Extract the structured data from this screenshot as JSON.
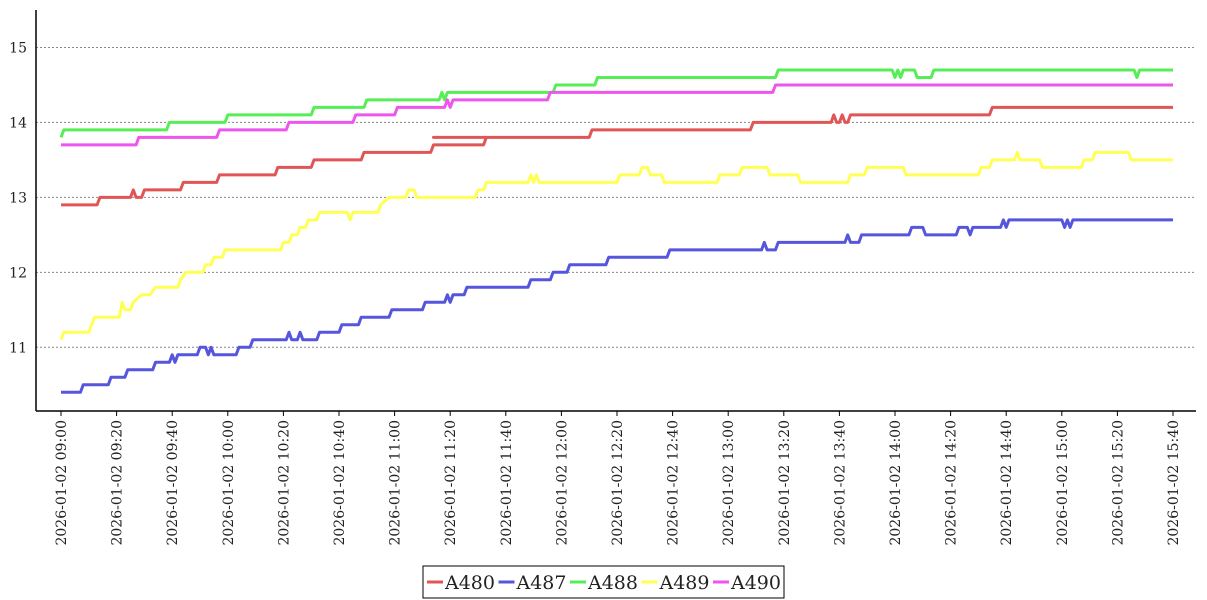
{
  "chart_data": {
    "type": "line",
    "title": "",
    "xlabel": "",
    "ylabel": "",
    "ylim": [
      10.15,
      15.5
    ],
    "yticks": [
      11,
      12,
      13,
      14,
      15
    ],
    "grid": "horizontal-dotted",
    "legend_placement": "bottom-center",
    "x_start": "2026-01-02 09:00",
    "x_end": "2026-01-02 15:40",
    "x_ticks": [
      "2026-01-02 09:00",
      "2026-01-02 09:20",
      "2026-01-02 09:40",
      "2026-01-02 10:00",
      "2026-01-02 10:20",
      "2026-01-02 10:40",
      "2026-01-02 11:00",
      "2026-01-02 11:20",
      "2026-01-02 11:40",
      "2026-01-02 12:00",
      "2026-01-02 12:20",
      "2026-01-02 12:40",
      "2026-01-02 13:00",
      "2026-01-02 13:20",
      "2026-01-02 13:40",
      "2026-01-02 14:00",
      "2026-01-02 14:20",
      "2026-01-02 14:40",
      "2026-01-02 15:00",
      "2026-01-02 15:20",
      "2026-01-02 15:40"
    ],
    "series": [
      {
        "name": "A480",
        "color": "#e05555",
        "points": [
          [
            "09:00",
            12.9
          ],
          [
            "09:13",
            12.9
          ],
          [
            "09:14",
            13.0
          ],
          [
            "09:25",
            13.0
          ],
          [
            "09:26",
            13.1
          ],
          [
            "09:27",
            13.0
          ],
          [
            "09:29",
            13.0
          ],
          [
            "09:30",
            13.1
          ],
          [
            "09:43",
            13.1
          ],
          [
            "09:44",
            13.2
          ],
          [
            "09:56",
            13.2
          ],
          [
            "09:57",
            13.3
          ],
          [
            "10:17",
            13.3
          ],
          [
            "10:18",
            13.4
          ],
          [
            "10:30",
            13.4
          ],
          [
            "10:31",
            13.5
          ],
          [
            "10:48",
            13.5
          ],
          [
            "10:49",
            13.6
          ],
          [
            "11:13",
            13.6
          ],
          [
            "11:14",
            13.7
          ],
          [
            "11:32",
            13.7
          ],
          [
            "11:33",
            13.8
          ],
          [
            "11:14",
            13.8
          ],
          [
            "11:33",
            13.8
          ],
          [
            "12:10",
            13.8
          ],
          [
            "12:11",
            13.9
          ],
          [
            "13:08",
            13.9
          ],
          [
            "13:09",
            14.0
          ],
          [
            "13:37",
            14.0
          ],
          [
            "13:38",
            14.1
          ],
          [
            "13:39",
            14.0
          ],
          [
            "13:40",
            14.0
          ],
          [
            "13:41",
            14.1
          ],
          [
            "13:42",
            14.0
          ],
          [
            "13:43",
            14.0
          ],
          [
            "13:44",
            14.1
          ],
          [
            "14:34",
            14.1
          ],
          [
            "14:35",
            14.2
          ],
          [
            "15:40",
            14.2
          ]
        ]
      },
      {
        "name": "A487",
        "color": "#5555dd",
        "points": [
          [
            "09:00",
            10.4
          ],
          [
            "09:07",
            10.4
          ],
          [
            "09:08",
            10.5
          ],
          [
            "09:17",
            10.5
          ],
          [
            "09:18",
            10.6
          ],
          [
            "09:23",
            10.6
          ],
          [
            "09:24",
            10.7
          ],
          [
            "09:33",
            10.7
          ],
          [
            "09:34",
            10.8
          ],
          [
            "09:39",
            10.8
          ],
          [
            "09:40",
            10.9
          ],
          [
            "09:41",
            10.8
          ],
          [
            "09:42",
            10.9
          ],
          [
            "09:49",
            10.9
          ],
          [
            "09:50",
            11.0
          ],
          [
            "09:52",
            11.0
          ],
          [
            "09:53",
            10.9
          ],
          [
            "09:54",
            11.0
          ],
          [
            "09:55",
            10.9
          ],
          [
            "10:03",
            10.9
          ],
          [
            "10:04",
            11.0
          ],
          [
            "10:08",
            11.0
          ],
          [
            "10:09",
            11.1
          ],
          [
            "10:21",
            11.1
          ],
          [
            "10:22",
            11.2
          ],
          [
            "10:23",
            11.1
          ],
          [
            "10:25",
            11.1
          ],
          [
            "10:26",
            11.2
          ],
          [
            "10:27",
            11.1
          ],
          [
            "10:32",
            11.1
          ],
          [
            "10:33",
            11.2
          ],
          [
            "10:40",
            11.2
          ],
          [
            "10:41",
            11.3
          ],
          [
            "10:47",
            11.3
          ],
          [
            "10:48",
            11.4
          ],
          [
            "10:58",
            11.4
          ],
          [
            "10:59",
            11.5
          ],
          [
            "11:10",
            11.5
          ],
          [
            "11:11",
            11.6
          ],
          [
            "11:18",
            11.6
          ],
          [
            "11:19",
            11.7
          ],
          [
            "11:20",
            11.6
          ],
          [
            "11:21",
            11.7
          ],
          [
            "11:25",
            11.7
          ],
          [
            "11:26",
            11.8
          ],
          [
            "11:48",
            11.8
          ],
          [
            "11:49",
            11.9
          ],
          [
            "11:56",
            11.9
          ],
          [
            "11:57",
            12.0
          ],
          [
            "12:02",
            12.0
          ],
          [
            "12:03",
            12.1
          ],
          [
            "12:16",
            12.1
          ],
          [
            "12:17",
            12.2
          ],
          [
            "12:38",
            12.2
          ],
          [
            "12:39",
            12.3
          ],
          [
            "13:12",
            12.3
          ],
          [
            "13:13",
            12.4
          ],
          [
            "13:14",
            12.3
          ],
          [
            "13:17",
            12.3
          ],
          [
            "13:18",
            12.4
          ],
          [
            "13:42",
            12.4
          ],
          [
            "13:43",
            12.5
          ],
          [
            "13:44",
            12.4
          ],
          [
            "13:47",
            12.4
          ],
          [
            "13:48",
            12.5
          ],
          [
            "14:05",
            12.5
          ],
          [
            "14:06",
            12.6
          ],
          [
            "14:10",
            12.6
          ],
          [
            "14:11",
            12.5
          ],
          [
            "14:22",
            12.5
          ],
          [
            "14:23",
            12.6
          ],
          [
            "14:26",
            12.6
          ],
          [
            "14:27",
            12.5
          ],
          [
            "14:28",
            12.6
          ],
          [
            "14:38",
            12.6
          ],
          [
            "14:39",
            12.7
          ],
          [
            "14:40",
            12.6
          ],
          [
            "14:41",
            12.7
          ],
          [
            "15:00",
            12.7
          ],
          [
            "15:01",
            12.6
          ],
          [
            "15:02",
            12.7
          ],
          [
            "15:03",
            12.6
          ],
          [
            "15:04",
            12.7
          ],
          [
            "15:40",
            12.7
          ]
        ]
      },
      {
        "name": "A488",
        "color": "#55ee55",
        "points": [
          [
            "09:00",
            13.8
          ],
          [
            "09:01",
            13.9
          ],
          [
            "09:38",
            13.9
          ],
          [
            "09:39",
            14.0
          ],
          [
            "09:59",
            14.0
          ],
          [
            "10:00",
            14.1
          ],
          [
            "10:30",
            14.1
          ],
          [
            "10:31",
            14.2
          ],
          [
            "10:49",
            14.2
          ],
          [
            "10:50",
            14.3
          ],
          [
            "11:16",
            14.3
          ],
          [
            "11:17",
            14.4
          ],
          [
            "11:18",
            14.3
          ],
          [
            "11:19",
            14.4
          ],
          [
            "11:57",
            14.4
          ],
          [
            "11:58",
            14.5
          ],
          [
            "12:12",
            14.5
          ],
          [
            "12:13",
            14.6
          ],
          [
            "13:17",
            14.6
          ],
          [
            "13:18",
            14.7
          ],
          [
            "13:59",
            14.7
          ],
          [
            "14:00",
            14.6
          ],
          [
            "14:01",
            14.7
          ],
          [
            "14:02",
            14.6
          ],
          [
            "14:03",
            14.7
          ],
          [
            "14:07",
            14.7
          ],
          [
            "14:08",
            14.6
          ],
          [
            "14:13",
            14.6
          ],
          [
            "14:14",
            14.7
          ],
          [
            "15:26",
            14.7
          ],
          [
            "15:27",
            14.6
          ],
          [
            "15:28",
            14.7
          ],
          [
            "15:40",
            14.7
          ]
        ]
      },
      {
        "name": "A489",
        "color": "#ffff55",
        "points": [
          [
            "09:00",
            11.1
          ],
          [
            "09:01",
            11.2
          ],
          [
            "09:10",
            11.2
          ],
          [
            "09:11",
            11.3
          ],
          [
            "09:12",
            11.4
          ],
          [
            "09:21",
            11.4
          ],
          [
            "09:22",
            11.6
          ],
          [
            "09:23",
            11.5
          ],
          [
            "09:25",
            11.5
          ],
          [
            "09:26",
            11.6
          ],
          [
            "09:29",
            11.7
          ],
          [
            "09:32",
            11.7
          ],
          [
            "09:34",
            11.8
          ],
          [
            "09:42",
            11.8
          ],
          [
            "09:43",
            11.9
          ],
          [
            "09:45",
            12.0
          ],
          [
            "09:51",
            12.0
          ],
          [
            "09:52",
            12.1
          ],
          [
            "09:54",
            12.1
          ],
          [
            "09:55",
            12.2
          ],
          [
            "09:58",
            12.2
          ],
          [
            "09:59",
            12.3
          ],
          [
            "10:19",
            12.3
          ],
          [
            "10:20",
            12.4
          ],
          [
            "10:22",
            12.4
          ],
          [
            "10:23",
            12.5
          ],
          [
            "10:25",
            12.5
          ],
          [
            "10:26",
            12.6
          ],
          [
            "10:28",
            12.6
          ],
          [
            "10:29",
            12.7
          ],
          [
            "10:32",
            12.7
          ],
          [
            "10:33",
            12.8
          ],
          [
            "10:43",
            12.8
          ],
          [
            "10:44",
            12.7
          ],
          [
            "10:45",
            12.8
          ],
          [
            "10:54",
            12.8
          ],
          [
            "10:55",
            12.9
          ],
          [
            "10:58",
            13.0
          ],
          [
            "11:04",
            13.0
          ],
          [
            "11:05",
            13.1
          ],
          [
            "11:07",
            13.1
          ],
          [
            "11:08",
            13.0
          ],
          [
            "11:29",
            13.0
          ],
          [
            "11:30",
            13.1
          ],
          [
            "11:32",
            13.1
          ],
          [
            "11:33",
            13.2
          ],
          [
            "11:48",
            13.2
          ],
          [
            "11:49",
            13.3
          ],
          [
            "11:50",
            13.2
          ],
          [
            "11:51",
            13.3
          ],
          [
            "11:52",
            13.2
          ],
          [
            "12:20",
            13.2
          ],
          [
            "12:21",
            13.3
          ],
          [
            "12:28",
            13.3
          ],
          [
            "12:29",
            13.4
          ],
          [
            "12:31",
            13.4
          ],
          [
            "12:32",
            13.3
          ],
          [
            "12:36",
            13.3
          ],
          [
            "12:37",
            13.2
          ],
          [
            "12:56",
            13.2
          ],
          [
            "12:57",
            13.3
          ],
          [
            "13:04",
            13.3
          ],
          [
            "13:05",
            13.4
          ],
          [
            "13:14",
            13.4
          ],
          [
            "13:15",
            13.3
          ],
          [
            "13:25",
            13.3
          ],
          [
            "13:26",
            13.2
          ],
          [
            "13:43",
            13.2
          ],
          [
            "13:44",
            13.3
          ],
          [
            "13:49",
            13.3
          ],
          [
            "13:50",
            13.4
          ],
          [
            "14:03",
            13.4
          ],
          [
            "14:04",
            13.3
          ],
          [
            "14:30",
            13.3
          ],
          [
            "14:31",
            13.4
          ],
          [
            "14:34",
            13.4
          ],
          [
            "14:35",
            13.5
          ],
          [
            "14:43",
            13.5
          ],
          [
            "14:44",
            13.6
          ],
          [
            "14:45",
            13.5
          ],
          [
            "14:52",
            13.5
          ],
          [
            "14:53",
            13.4
          ],
          [
            "15:07",
            13.4
          ],
          [
            "15:08",
            13.5
          ],
          [
            "15:11",
            13.5
          ],
          [
            "15:12",
            13.6
          ],
          [
            "15:24",
            13.6
          ],
          [
            "15:25",
            13.5
          ],
          [
            "15:40",
            13.5
          ]
        ]
      },
      {
        "name": "A490",
        "color": "#ee55ee",
        "points": [
          [
            "09:00",
            13.7
          ],
          [
            "09:27",
            13.7
          ],
          [
            "09:28",
            13.8
          ],
          [
            "09:56",
            13.8
          ],
          [
            "09:57",
            13.9
          ],
          [
            "10:21",
            13.9
          ],
          [
            "10:22",
            14.0
          ],
          [
            "10:45",
            14.0
          ],
          [
            "10:46",
            14.1
          ],
          [
            "11:00",
            14.1
          ],
          [
            "11:01",
            14.2
          ],
          [
            "11:18",
            14.2
          ],
          [
            "11:19",
            14.3
          ],
          [
            "11:20",
            14.2
          ],
          [
            "11:21",
            14.3
          ],
          [
            "11:55",
            14.3
          ],
          [
            "11:56",
            14.4
          ],
          [
            "13:16",
            14.4
          ],
          [
            "13:17",
            14.5
          ],
          [
            "15:40",
            14.5
          ]
        ]
      }
    ]
  }
}
